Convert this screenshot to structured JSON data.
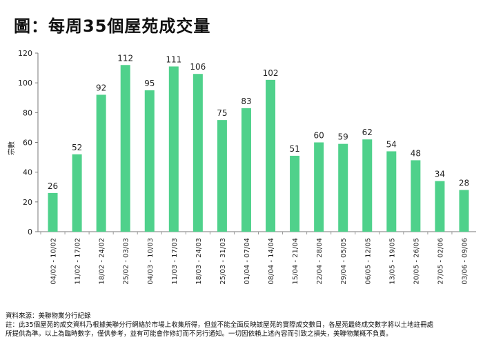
{
  "title": "圖：每周35個屋苑成交量",
  "chart_data": {
    "type": "bar",
    "title": "圖：每周35個屋苑成交量",
    "xlabel": "",
    "ylabel": "宗數",
    "ylim": [
      0,
      120
    ],
    "yticks": [
      0,
      20,
      40,
      60,
      80,
      100,
      120
    ],
    "grid": false,
    "bar_color": "#4fd18b",
    "categories": [
      "04/02 - 10/02",
      "11/02 - 17/02",
      "18/02 - 24/02",
      "25/02 - 03/03",
      "04/03 - 10/03",
      "11/03 - 17/03",
      "18/03 - 24/03",
      "25/03 - 31/03",
      "01/04 - 07/04",
      "08/04 - 14/04",
      "15/04 - 21/04",
      "22/04 - 28/04",
      "29/04 - 05/05",
      "06/05 - 12/05",
      "13/05 - 19/05",
      "20/05 - 26/05",
      "27/05 - 02/06",
      "03/06 - 09/06"
    ],
    "values": [
      26,
      52,
      92,
      112,
      95,
      111,
      106,
      75,
      83,
      102,
      51,
      60,
      59,
      62,
      54,
      48,
      34,
      28
    ]
  },
  "notes": {
    "source": "資料來源：美聯物業分行紀錄",
    "line1": "註：此35個屋苑的成交資料乃根據美聯分行網絡於市場上收集所得，但並不能全面反映該屋苑的實際成交數目，各屋苑最終成交數字將以土地註冊處",
    "line2": "所提供為準。以上為臨時數字，僅供參考，並有可能會作修訂而不另行通知。一切因依賴上述內容而引致之損失，美聯物業概不負責。"
  }
}
